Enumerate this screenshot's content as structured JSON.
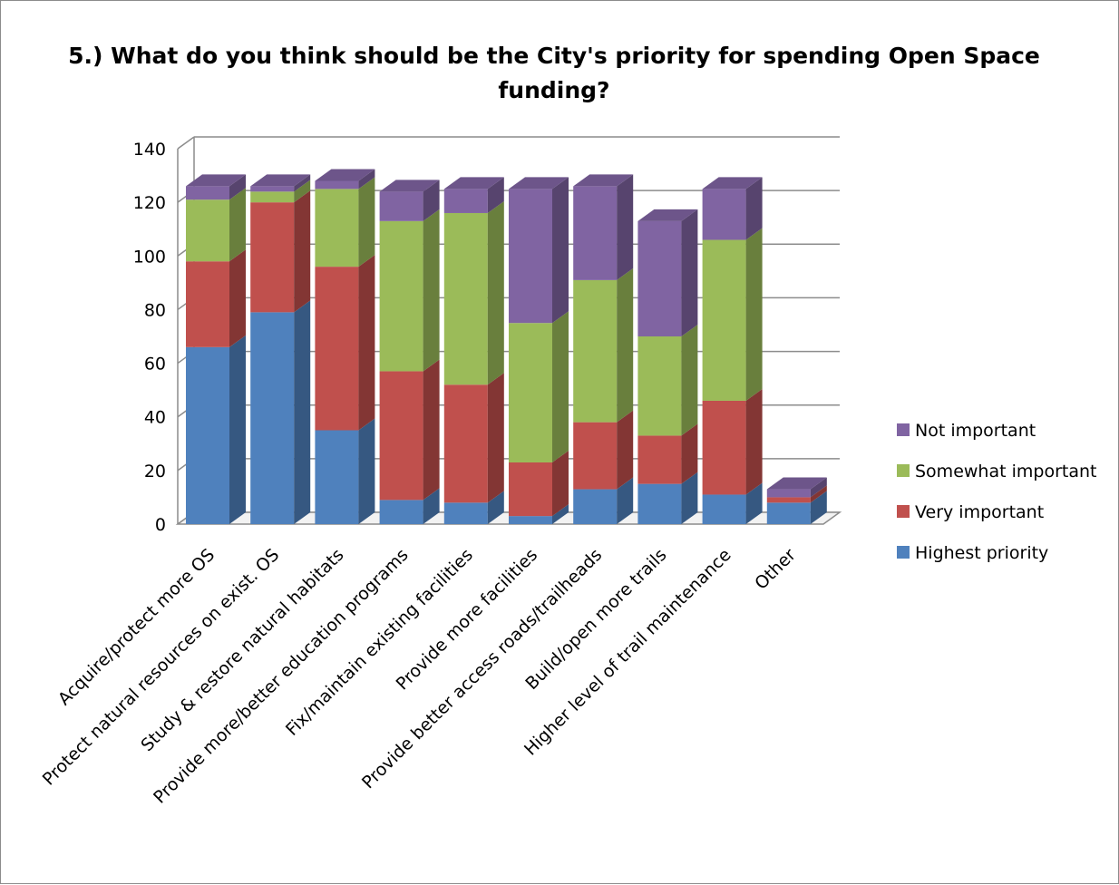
{
  "chart_data": {
    "type": "bar",
    "stacked": true,
    "three_d": true,
    "title": "5.) What do you think should be the City's priority for spending Open Space funding?",
    "categories": [
      "Acquire/protect more OS",
      "Protect natural resources on exist. OS",
      "Study & restore natural habitats",
      "Provide more/better education programs",
      "Fix/maintain existing facilities",
      "Provide more facilities",
      "Provide better access roads/trailheads",
      "Build/open more trails",
      "Higher level of trail maintenance",
      "Other"
    ],
    "series": [
      {
        "name": "Highest priority",
        "color": "#4f81bd",
        "values": [
          66,
          79,
          35,
          9,
          8,
          3,
          13,
          15,
          11,
          8
        ]
      },
      {
        "name": "Very important",
        "color": "#c0504d",
        "values": [
          32,
          41,
          61,
          48,
          44,
          20,
          25,
          18,
          35,
          2
        ]
      },
      {
        "name": "Somewhat important",
        "color": "#9bbb59",
        "values": [
          23,
          4,
          29,
          56,
          64,
          52,
          53,
          37,
          60,
          0
        ]
      },
      {
        "name": "Not important",
        "color": "#8064a2",
        "values": [
          5,
          2,
          3,
          11,
          9,
          50,
          35,
          43,
          19,
          3
        ]
      }
    ],
    "ylim": [
      0,
      140
    ],
    "yticks": [
      0,
      20,
      40,
      60,
      80,
      100,
      120,
      140
    ],
    "grid": true,
    "legend": "right"
  }
}
